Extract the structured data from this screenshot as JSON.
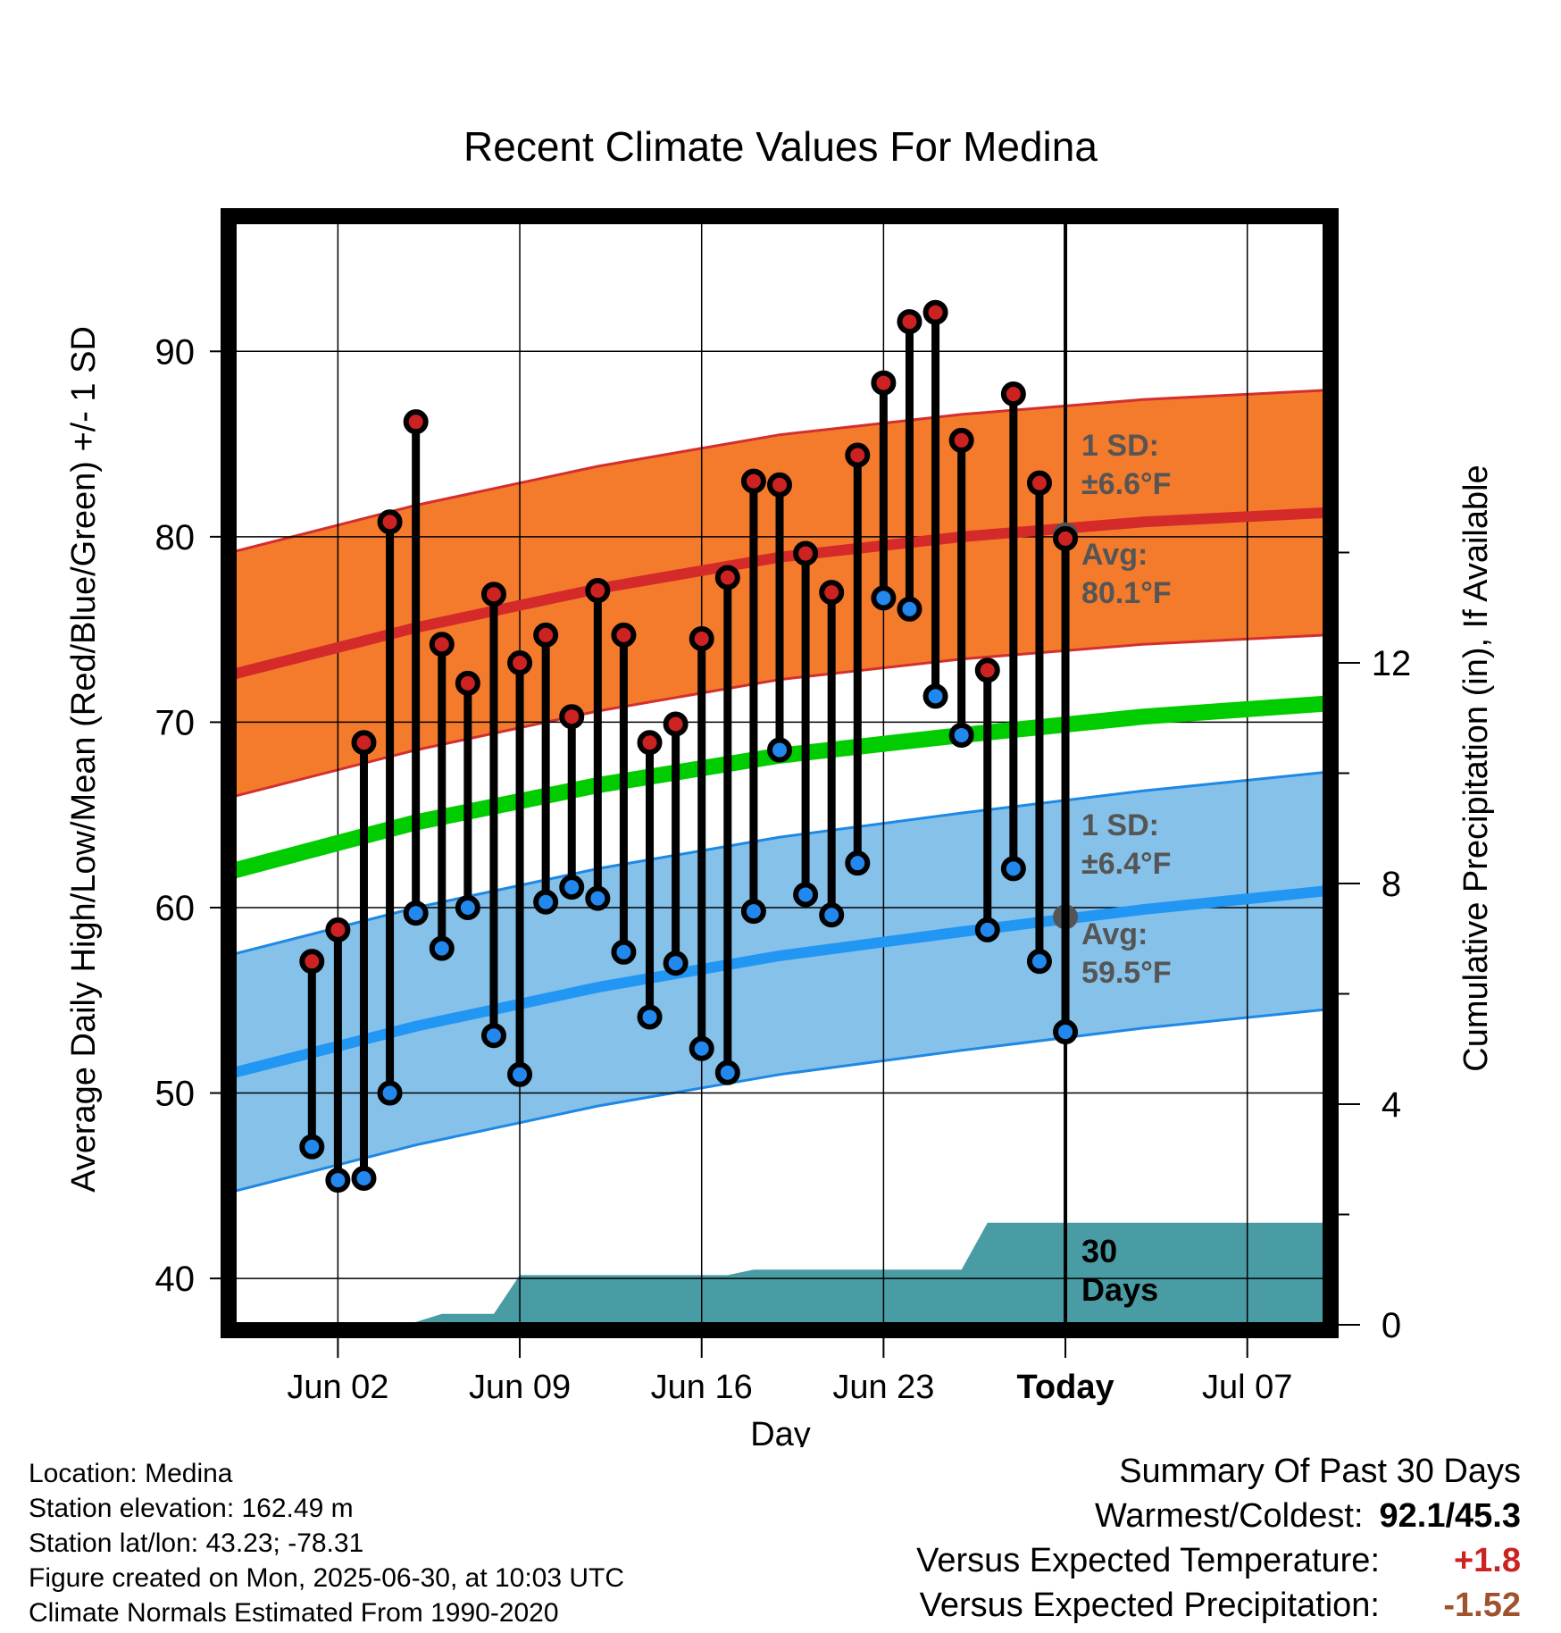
{
  "chart_data": {
    "type": "line",
    "title": "Recent Climate Values For Medina",
    "xlabel": "Day",
    "ylabel": "Average Daily High/Low/Mean (Red/Blue/Green) +/- 1 SD",
    "y2label": "Cumulative Precipitation (in), If Available",
    "xlim": [
      "2025-05-29",
      "2025-07-10"
    ],
    "ylim": [
      37.5,
      97
    ],
    "y2lim": [
      0,
      20
    ],
    "x_ticks": [
      {
        "date": "2025-06-02",
        "label": "Jun 02"
      },
      {
        "date": "2025-06-09",
        "label": "Jun 09"
      },
      {
        "date": "2025-06-16",
        "label": "Jun 16"
      },
      {
        "date": "2025-06-23",
        "label": "Jun 23"
      },
      {
        "date": "2025-06-30",
        "label": "Today"
      },
      {
        "date": "2025-07-07",
        "label": "Jul 07"
      }
    ],
    "y_ticks": [
      40,
      50,
      60,
      70,
      80,
      90
    ],
    "y2_ticks": [
      0,
      4,
      8,
      12
    ],
    "today": "2025-06-30",
    "normals": {
      "dates": [
        "2025-05-29",
        "2025-06-05",
        "2025-06-12",
        "2025-06-19",
        "2025-06-26",
        "2025-07-03",
        "2025-07-10"
      ],
      "high_mean": [
        72.6,
        75.1,
        77.2,
        78.9,
        80.0,
        80.8,
        81.3
      ],
      "high_sd": 6.6,
      "low_mean": [
        51.1,
        53.6,
        55.7,
        57.4,
        58.7,
        59.9,
        60.9
      ],
      "low_sd": 6.4,
      "mean": [
        62.0,
        64.6,
        66.6,
        68.2,
        69.3,
        70.3,
        71.0
      ]
    },
    "series": [
      {
        "name": "High",
        "color": "#cc2222",
        "points": [
          [
            "2025-06-01",
            57.1
          ],
          [
            "2025-06-02",
            58.8
          ],
          [
            "2025-06-03",
            68.9
          ],
          [
            "2025-06-04",
            80.8
          ],
          [
            "2025-06-05",
            86.2
          ],
          [
            "2025-06-06",
            74.2
          ],
          [
            "2025-06-07",
            72.1
          ],
          [
            "2025-06-08",
            76.9
          ],
          [
            "2025-06-09",
            73.2
          ],
          [
            "2025-06-10",
            74.7
          ],
          [
            "2025-06-11",
            70.3
          ],
          [
            "2025-06-12",
            77.1
          ],
          [
            "2025-06-13",
            74.7
          ],
          [
            "2025-06-14",
            68.9
          ],
          [
            "2025-06-15",
            69.9
          ],
          [
            "2025-06-16",
            74.5
          ],
          [
            "2025-06-17",
            77.8
          ],
          [
            "2025-06-18",
            83.0
          ],
          [
            "2025-06-19",
            82.8
          ],
          [
            "2025-06-20",
            79.1
          ],
          [
            "2025-06-21",
            77.0
          ],
          [
            "2025-06-22",
            84.4
          ],
          [
            "2025-06-23",
            88.3
          ],
          [
            "2025-06-24",
            91.6
          ],
          [
            "2025-06-25",
            92.1
          ],
          [
            "2025-06-26",
            85.2
          ],
          [
            "2025-06-27",
            72.8
          ],
          [
            "2025-06-28",
            87.7
          ],
          [
            "2025-06-29",
            82.9
          ],
          [
            "2025-06-30",
            79.9
          ]
        ]
      },
      {
        "name": "Low",
        "color": "#2288ee",
        "points": [
          [
            "2025-06-01",
            47.1
          ],
          [
            "2025-06-02",
            45.3
          ],
          [
            "2025-06-03",
            45.4
          ],
          [
            "2025-06-04",
            50.0
          ],
          [
            "2025-06-05",
            59.7
          ],
          [
            "2025-06-06",
            57.8
          ],
          [
            "2025-06-07",
            60.0
          ],
          [
            "2025-06-08",
            53.1
          ],
          [
            "2025-06-09",
            51.0
          ],
          [
            "2025-06-10",
            60.3
          ],
          [
            "2025-06-11",
            61.1
          ],
          [
            "2025-06-12",
            60.5
          ],
          [
            "2025-06-13",
            57.6
          ],
          [
            "2025-06-14",
            54.1
          ],
          [
            "2025-06-15",
            57.0
          ],
          [
            "2025-06-16",
            52.4
          ],
          [
            "2025-06-17",
            51.1
          ],
          [
            "2025-06-18",
            59.8
          ],
          [
            "2025-06-19",
            68.5
          ],
          [
            "2025-06-20",
            60.7
          ],
          [
            "2025-06-21",
            59.6
          ],
          [
            "2025-06-22",
            62.4
          ],
          [
            "2025-06-23",
            76.7
          ],
          [
            "2025-06-24",
            76.1
          ],
          [
            "2025-06-25",
            71.4
          ],
          [
            "2025-06-26",
            69.3
          ],
          [
            "2025-06-27",
            58.8
          ],
          [
            "2025-06-28",
            62.1
          ],
          [
            "2025-06-29",
            57.1
          ],
          [
            "2025-06-30",
            53.3
          ]
        ]
      }
    ],
    "precip_cumulative": [
      [
        "2025-05-29",
        0
      ],
      [
        "2025-06-04",
        0
      ],
      [
        "2025-06-05",
        0.05
      ],
      [
        "2025-06-06",
        0.2
      ],
      [
        "2025-06-08",
        0.2
      ],
      [
        "2025-06-09",
        0.9
      ],
      [
        "2025-06-17",
        0.9
      ],
      [
        "2025-06-18",
        1.0
      ],
      [
        "2025-06-26",
        1.0
      ],
      [
        "2025-06-27",
        1.85
      ],
      [
        "2025-07-10",
        1.85
      ]
    ],
    "annotations": {
      "high_sd_text": [
        "1 SD:",
        "±6.6°F"
      ],
      "high_avg_text": [
        "Avg:",
        "80.1°F"
      ],
      "high_avg_value": 80.1,
      "low_sd_text": [
        "1 SD:",
        "±6.4°F"
      ],
      "low_avg_text": [
        "Avg:",
        "59.5°F"
      ],
      "low_avg_value": 59.5,
      "days_text": [
        "30",
        "Days"
      ]
    }
  },
  "info": {
    "location": "Location: Medina",
    "elevation": "Station elevation: 162.49 m",
    "latlon": "Station lat/lon: 43.23; -78.31",
    "created": "Figure created on Mon, 2025-06-30, at 10:03 UTC",
    "normals": "Climate Normals Estimated From 1990-2020"
  },
  "summary": {
    "title": "Summary Of Past 30 Days",
    "warmest_label": "Warmest/Coldest:",
    "warmest_value": "92.1/45.3",
    "temp_label": "Versus Expected Temperature:",
    "temp_value": "+1.8",
    "temp_color": "#cc2222",
    "precip_label": "Versus Expected Precipitation:",
    "precip_value": "-1.52",
    "precip_color": "#a0522d"
  }
}
